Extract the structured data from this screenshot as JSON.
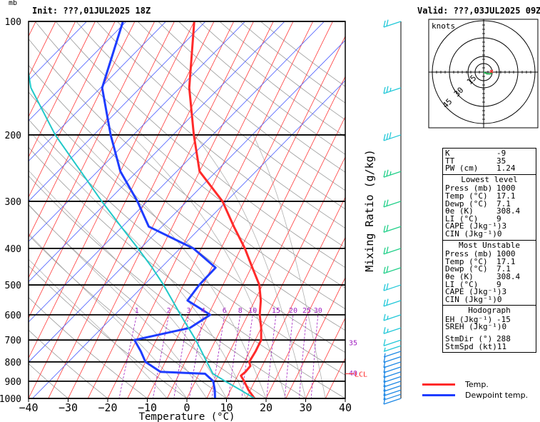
{
  "header": {
    "unit_mb": "mb",
    "init": "Init: ???,01JUL2025 18Z",
    "valid": "Valid: ???,03JUL2025 09Z"
  },
  "chart_data": {
    "type": "line",
    "title": "",
    "xlabel": "Temperature (°C)",
    "ylabel": "",
    "mixing_ratio_label": "Mixing Ratio (g/kg)",
    "pressure_levels": [
      100,
      200,
      300,
      400,
      500,
      600,
      700,
      800,
      900,
      1000
    ],
    "xlim": [
      -40,
      40
    ],
    "xticks": [
      -40,
      -30,
      -20,
      -10,
      0,
      10,
      20,
      30,
      40
    ],
    "ylim": [
      1000,
      100
    ],
    "y_scale": "log-pressure",
    "mixing_ratio_ticks": [
      {
        "label": "1",
        "w": 1
      },
      {
        "label": "2",
        "w": 2
      },
      {
        "label": "3",
        "w": 3
      },
      {
        "label": "4",
        "w": 4
      },
      {
        "label": "6",
        "w": 6
      },
      {
        "label": "8",
        "w": 8
      },
      {
        "label": "10",
        "w": 10
      },
      {
        "label": "15",
        "w": 15
      },
      {
        "label": "20",
        "w": 20
      },
      {
        "label": "25",
        "w": 25
      },
      {
        "label": "30",
        "w": 30
      }
    ],
    "theta_e_marks": [
      {
        "label": "35",
        "p": 710
      },
      {
        "label": "40",
        "p": 855
      }
    ],
    "lcl_label": "LCL",
    "lcl_pressure": 860,
    "series": [
      {
        "name": "Temp.",
        "color": "#ff2a2a",
        "points": [
          [
            1000,
            17.1
          ],
          [
            950,
            14.5
          ],
          [
            900,
            12.3
          ],
          [
            870,
            10.8
          ],
          [
            850,
            11.5
          ],
          [
            820,
            12.0
          ],
          [
            800,
            11.2
          ],
          [
            750,
            11.5
          ],
          [
            700,
            11.5
          ],
          [
            650,
            10.0
          ],
          [
            600,
            8.0
          ],
          [
            550,
            6.5
          ],
          [
            500,
            4.2
          ],
          [
            450,
            0.3
          ],
          [
            400,
            -4.0
          ],
          [
            350,
            -9.5
          ],
          [
            300,
            -15.5
          ],
          [
            250,
            -25.0
          ],
          [
            200,
            -31.0
          ],
          [
            150,
            -38.0
          ],
          [
            100,
            -45.0
          ]
        ]
      },
      {
        "name": "Dewpoint temp.",
        "color": "#1e3cff",
        "points": [
          [
            1000,
            7.1
          ],
          [
            950,
            6.0
          ],
          [
            900,
            4.5
          ],
          [
            860,
            1.5
          ],
          [
            850,
            -10.0
          ],
          [
            800,
            -15.0
          ],
          [
            750,
            -17.5
          ],
          [
            700,
            -20.5
          ],
          [
            650,
            -8.0
          ],
          [
            600,
            -4.5
          ],
          [
            550,
            -12.0
          ],
          [
            500,
            -11.0
          ],
          [
            450,
            -9.0
          ],
          [
            400,
            -17.0
          ],
          [
            350,
            -31.0
          ],
          [
            300,
            -37.0
          ],
          [
            250,
            -45.0
          ],
          [
            200,
            -52.0
          ],
          [
            150,
            -60.0
          ],
          [
            100,
            -63.0
          ]
        ]
      },
      {
        "name": "parcel",
        "color": "#20c8c8",
        "points": [
          [
            1000,
            17.1
          ],
          [
            950,
            12.5
          ],
          [
            900,
            7.5
          ],
          [
            860,
            3.5
          ],
          [
            800,
            0.5
          ],
          [
            700,
            -5.0
          ],
          [
            600,
            -12.0
          ],
          [
            500,
            -20.0
          ],
          [
            450,
            -25.0
          ],
          [
            400,
            -31.0
          ],
          [
            350,
            -38.0
          ],
          [
            300,
            -46.0
          ],
          [
            250,
            -55.0
          ],
          [
            200,
            -66.0
          ],
          [
            150,
            -78.0
          ],
          [
            120,
            -84.0
          ]
        ]
      }
    ],
    "wind_barbs": [
      {
        "p": 1000,
        "speed": 10
      },
      {
        "p": 975,
        "speed": 10
      },
      {
        "p": 950,
        "speed": 10
      },
      {
        "p": 925,
        "speed": 10
      },
      {
        "p": 900,
        "speed": 10
      },
      {
        "p": 875,
        "speed": 10
      },
      {
        "p": 850,
        "speed": 10
      },
      {
        "p": 825,
        "speed": 10
      },
      {
        "p": 800,
        "speed": 10
      },
      {
        "p": 775,
        "speed": 10
      },
      {
        "p": 750,
        "speed": 5
      },
      {
        "p": 725,
        "speed": 5
      },
      {
        "p": 700,
        "speed": 10
      },
      {
        "p": 650,
        "speed": 15
      },
      {
        "p": 600,
        "speed": 15
      },
      {
        "p": 550,
        "speed": 20
      },
      {
        "p": 500,
        "speed": 20
      },
      {
        "p": 450,
        "speed": 20
      },
      {
        "p": 400,
        "speed": 20
      },
      {
        "p": 350,
        "speed": 20
      },
      {
        "p": 300,
        "speed": 20
      },
      {
        "p": 250,
        "speed": 25
      },
      {
        "p": 200,
        "speed": 30
      },
      {
        "p": 150,
        "speed": 25
      },
      {
        "p": 100,
        "speed": 20
      }
    ],
    "hodograph": {
      "units": "knots",
      "ring_labels": [
        "15",
        "30",
        "45"
      ],
      "points": [
        [
          0,
          0
        ],
        [
          2,
          1
        ],
        [
          4,
          1
        ],
        [
          5,
          0
        ]
      ]
    }
  },
  "indices": {
    "top": [
      {
        "k": "K",
        "v": "-9"
      },
      {
        "k": "TT",
        "v": "35"
      },
      {
        "k": "PW (cm)",
        "v": "1.24"
      }
    ],
    "lowest_title": "Lowest level",
    "lowest": [
      {
        "k": "Press (mb)",
        "v": "1000"
      },
      {
        "k": "Temp (°C)",
        "v": "17.1"
      },
      {
        "k": "Dewp (°C)",
        "v": "7.1"
      },
      {
        "k": "θe (K)",
        "v": "308.4"
      },
      {
        "k": "LI (°C)",
        "v": "9"
      },
      {
        "k": "CAPE (Jkg⁻¹)",
        "v": "3"
      },
      {
        "k": "CIN (Jkg⁻¹)",
        "v": "0"
      }
    ],
    "unstable_title": "Most Unstable",
    "unstable": [
      {
        "k": "Press (mb)",
        "v": "1000"
      },
      {
        "k": "Temp (°C)",
        "v": "17.1"
      },
      {
        "k": "Dewp (°C)",
        "v": "7.1"
      },
      {
        "k": "θe (K)",
        "v": "308.4"
      },
      {
        "k": "LI (°C)",
        "v": "9"
      },
      {
        "k": "CAPE (Jkg⁻¹)",
        "v": "3"
      },
      {
        "k": "CIN (Jkg⁻¹)",
        "v": "0"
      }
    ],
    "hodo_title": "Hodograph",
    "hodo": [
      {
        "k": "EH (Jkg⁻¹)",
        "v": "-15"
      },
      {
        "k": "SREH (Jkg⁻¹)",
        "v": "0"
      }
    ],
    "storm": [
      {
        "k": "StmDir (°)",
        "v": "288"
      },
      {
        "k": "StmSpd (kt)",
        "v": "11"
      }
    ]
  },
  "legend": [
    {
      "label": "Temp.",
      "color": "#ff2a2a"
    },
    {
      "label": "Dewpoint temp.",
      "color": "#1e3cff"
    }
  ]
}
